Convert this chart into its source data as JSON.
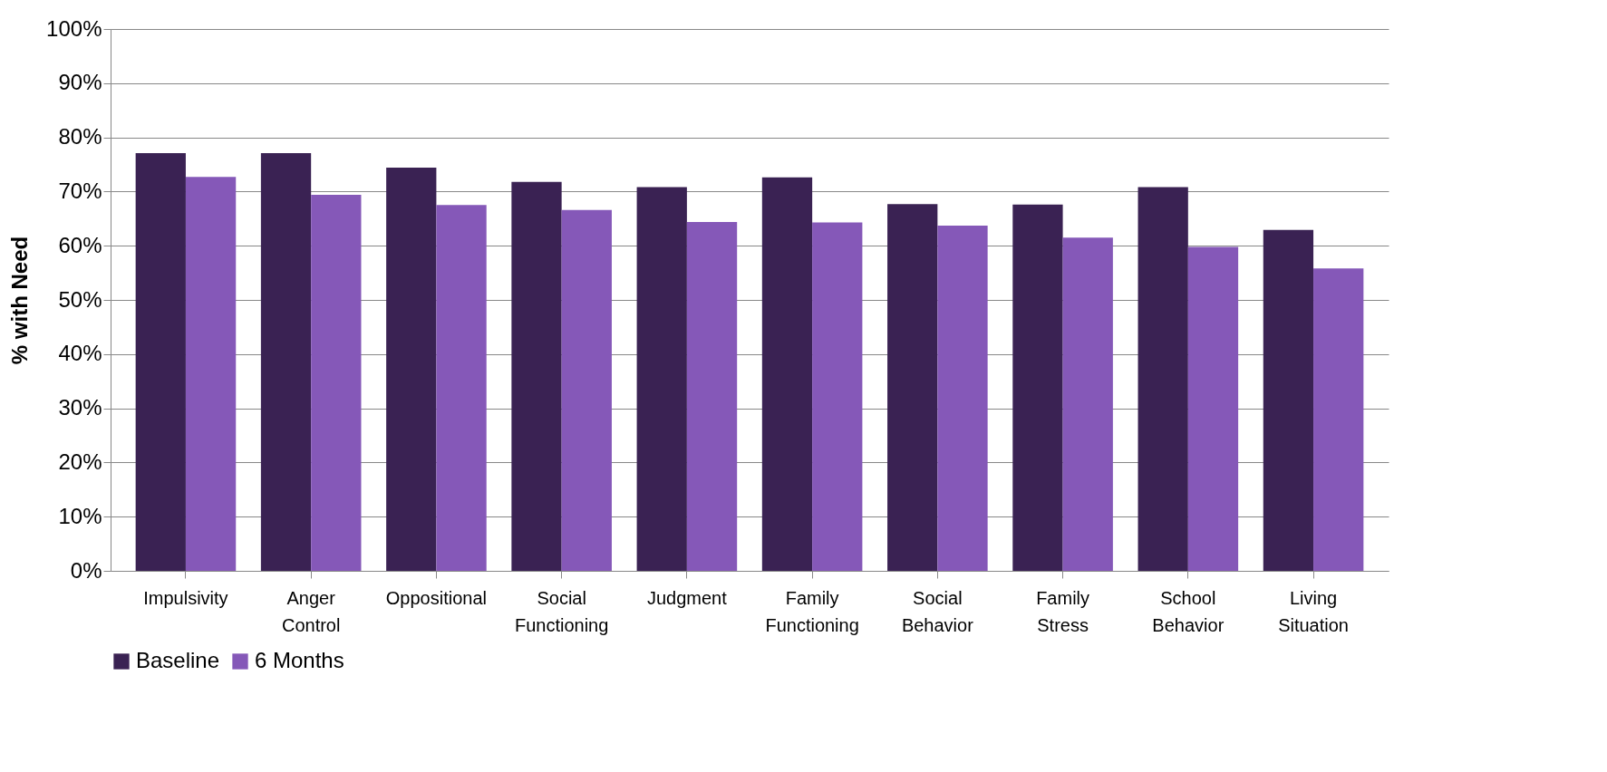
{
  "chart_data": {
    "type": "bar",
    "ylabel": "% with Need",
    "categories": [
      "Impulsivity",
      "Anger Control",
      "Oppositional",
      "Social Functioning",
      "Judgment",
      "Family Functioning",
      "Social Behavior",
      "Family Stress",
      "School Behavior",
      "Living Situation"
    ],
    "series": [
      {
        "name": "Baseline",
        "color": "#3a2253",
        "values": [
          77.1,
          77.1,
          74.4,
          71.8,
          70.8,
          72.6,
          67.7,
          67.6,
          70.8,
          62.9
        ]
      },
      {
        "name": "6 Months",
        "color": "#8558b8",
        "values": [
          72.7,
          69.4,
          67.5,
          66.6,
          64.4,
          64.3,
          63.7,
          61.5,
          59.8,
          55.8
        ]
      }
    ],
    "ylim": [
      0,
      100
    ],
    "yticks": [
      {
        "value": 0,
        "label": "0%"
      },
      {
        "value": 10,
        "label": "10%"
      },
      {
        "value": 20,
        "label": "20%"
      },
      {
        "value": 30,
        "label": "30%"
      },
      {
        "value": 40,
        "label": "40%"
      },
      {
        "value": 50,
        "label": "50%"
      },
      {
        "value": 60,
        "label": "60%"
      },
      {
        "value": 70,
        "label": "70%"
      },
      {
        "value": 80,
        "label": "80%"
      },
      {
        "value": 90,
        "label": "90%"
      },
      {
        "value": 100,
        "label": "100%"
      }
    ],
    "grid": "y",
    "legend": "bottom"
  }
}
